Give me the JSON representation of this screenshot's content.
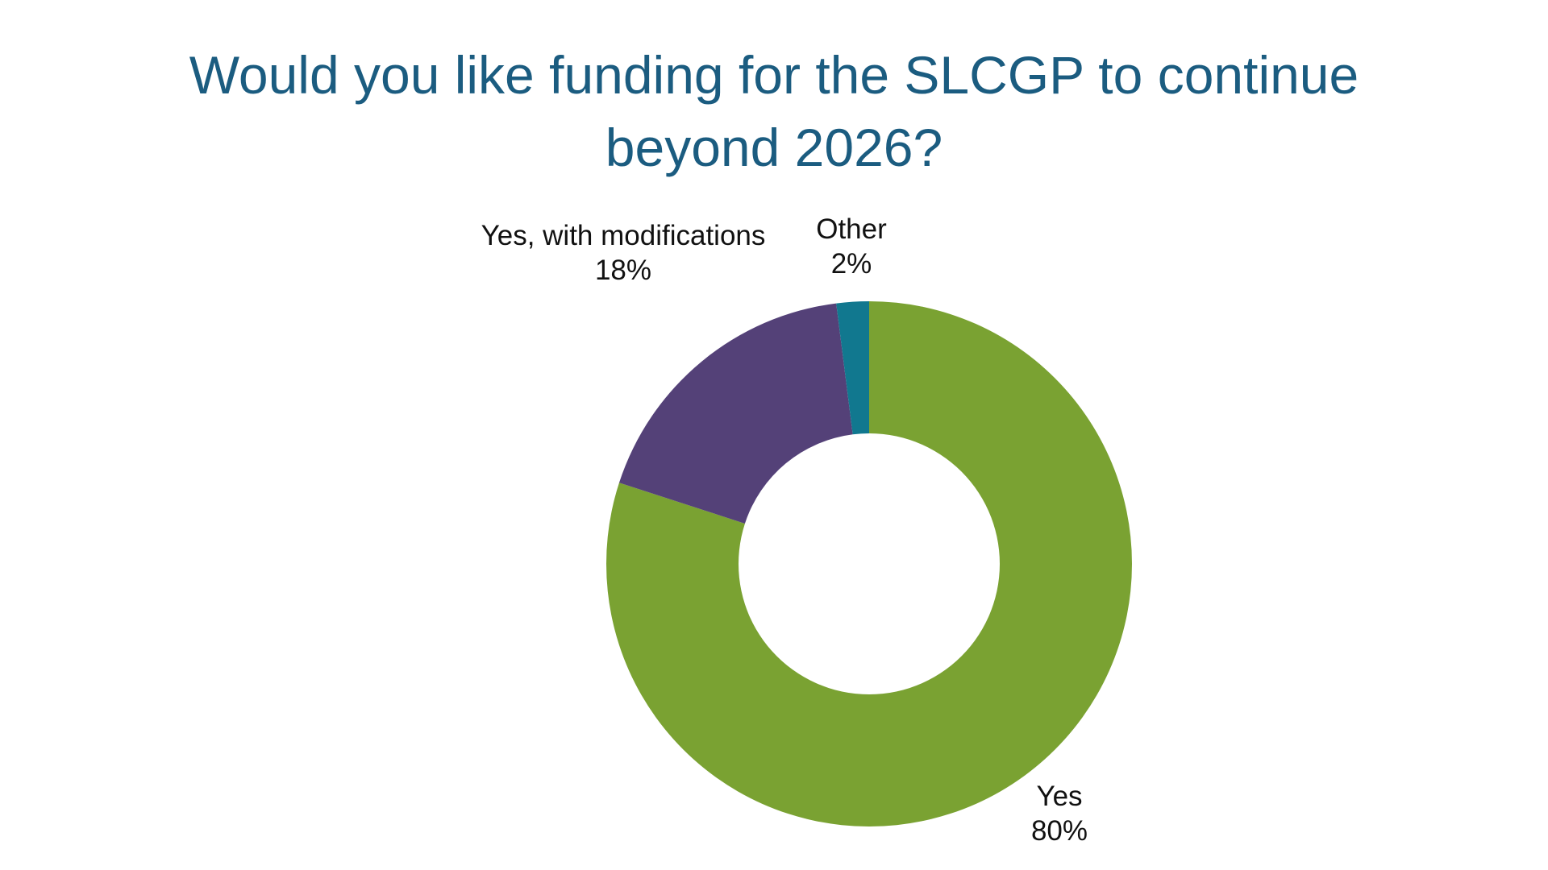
{
  "chart_data": {
    "type": "pie",
    "style": "donut",
    "title_lines": [
      "Would you like funding for the SLCGP to continue",
      "beyond 2026?"
    ],
    "categories": [
      "Yes",
      "Yes, with modifications",
      "Other"
    ],
    "values": [
      80,
      18,
      2
    ],
    "value_labels": [
      "80%",
      "18%",
      "2%"
    ],
    "colors": [
      "#7aa232",
      "#544178",
      "#11788f"
    ],
    "legend": "none"
  }
}
